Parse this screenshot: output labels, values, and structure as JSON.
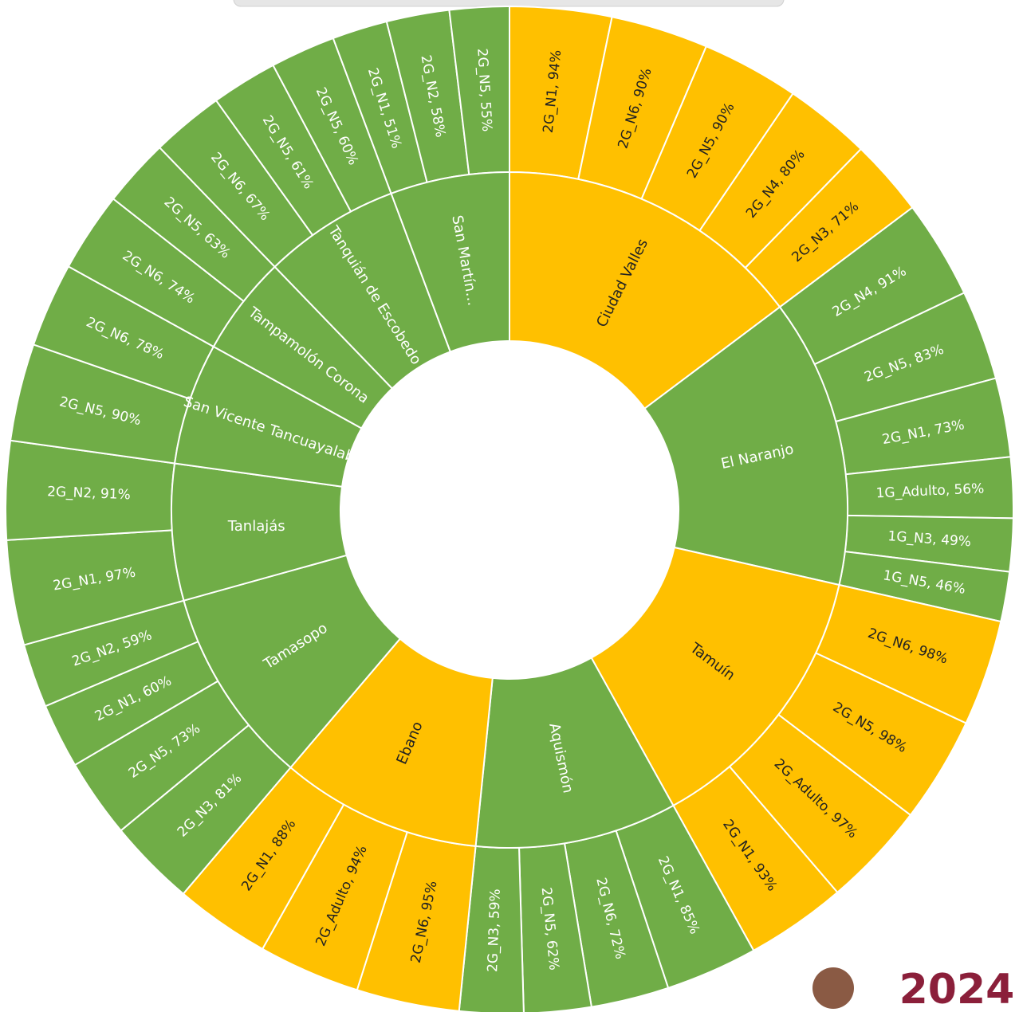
{
  "chart_data": {
    "type": "sunburst",
    "groups": [
      {
        "name": "Ciudad Valles",
        "color": "#FFC000",
        "children": [
          {
            "label": "2G_N1, 94%",
            "value": 94
          },
          {
            "label": "2G_N6, 90%",
            "value": 90
          },
          {
            "label": "2G_N5, 90%",
            "value": 90
          },
          {
            "label": "2G_N4, 80%",
            "value": 80
          },
          {
            "label": "2G_N3, 71%",
            "value": 71
          }
        ]
      },
      {
        "name": "El Naranjo",
        "color": "#70AD47",
        "children": [
          {
            "label": "2G_N4, 91%",
            "value": 91
          },
          {
            "label": "2G_N5, 83%",
            "value": 83
          },
          {
            "label": "2G_N1, 73%",
            "value": 73
          },
          {
            "label": "1G_Adulto, 56%",
            "value": 56
          },
          {
            "label": "1G_N3, 49%",
            "value": 49
          },
          {
            "label": "1G_N5, 46%",
            "value": 46
          }
        ]
      },
      {
        "name": "Tamuín",
        "color": "#FFC000",
        "children": [
          {
            "label": "2G_N6, 98%",
            "value": 98
          },
          {
            "label": "2G_N5, 98%",
            "value": 98
          },
          {
            "label": "2G_Adulto, 97%",
            "value": 97
          },
          {
            "label": "2G_N1, 93%",
            "value": 93
          }
        ]
      },
      {
        "name": "Aquismón",
        "color": "#70AD47",
        "children": [
          {
            "label": "2G_N1, 85%",
            "value": 85
          },
          {
            "label": "2G_N6, 72%",
            "value": 72
          },
          {
            "label": "2G_N5, 62%",
            "value": 62
          },
          {
            "label": "2G_N3, 59%",
            "value": 59
          }
        ]
      },
      {
        "name": "Ebano",
        "color": "#FFC000",
        "children": [
          {
            "label": "2G_N6, 95%",
            "value": 95
          },
          {
            "label": "2G_Adulto, 94%",
            "value": 94
          },
          {
            "label": "2G_N1, 88%",
            "value": 88
          }
        ]
      },
      {
        "name": "Tamasopo",
        "color": "#70AD47",
        "children": [
          {
            "label": "2G_N3, 81%",
            "value": 81
          },
          {
            "label": "2G_N5, 73%",
            "value": 73
          },
          {
            "label": "2G_N1, 60%",
            "value": 60
          },
          {
            "label": "2G_N2, 59%",
            "value": 59
          }
        ]
      },
      {
        "name": "Tanlajás",
        "color": "#70AD47",
        "children": [
          {
            "label": "2G_N1, 97%",
            "value": 97
          },
          {
            "label": "2G_N2, 91%",
            "value": 91
          }
        ]
      },
      {
        "name": "San Vicente Tancuayalab",
        "color": "#70AD47",
        "children": [
          {
            "label": "2G_N5, 90%",
            "value": 90
          },
          {
            "label": "2G_N6, 78%",
            "value": 78
          }
        ]
      },
      {
        "name": "Tampamolón Corona",
        "color": "#70AD47",
        "children": [
          {
            "label": "2G_N6, 74%",
            "value": 74
          },
          {
            "label": "2G_N5, 63%",
            "value": 63
          }
        ]
      },
      {
        "name": "Tanquián de Escobedo",
        "color": "#70AD47",
        "children": [
          {
            "label": "2G_N6, 67%",
            "value": 67
          },
          {
            "label": "2G_N5, 61%",
            "value": 61
          },
          {
            "label": "2G_N5, 60%",
            "value": 60
          }
        ]
      },
      {
        "name": "San Martín…",
        "color": "#70AD47",
        "children": [
          {
            "label": "2G_N1, 51%",
            "value": 51
          },
          {
            "label": "2G_N2, 58%",
            "value": 58
          },
          {
            "label": "2G_N5, 55%",
            "value": 55
          }
        ]
      }
    ]
  },
  "logo": "2024"
}
